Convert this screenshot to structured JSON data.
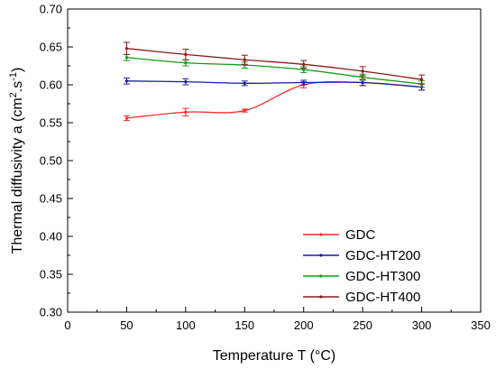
{
  "chart_data": {
    "type": "line",
    "title": "",
    "xlabel": "Temperature T (°C)",
    "ylabel_main": "Thermal diffusivity a (cm",
    "ylabel_sup1": "2",
    "ylabel_mid": ".s",
    "ylabel_sup2": "-1",
    "ylabel_end": ")",
    "xlim": [
      0,
      350
    ],
    "ylim": [
      0.3,
      0.7
    ],
    "xticks": [
      "0",
      "50",
      "100",
      "150",
      "200",
      "250",
      "300",
      "350"
    ],
    "yticks": [
      "0.30",
      "0.35",
      "0.40",
      "0.45",
      "0.50",
      "0.55",
      "0.60",
      "0.65",
      "0.70"
    ],
    "grid": false,
    "legend_position": "bottom-right",
    "x": [
      50,
      100,
      150,
      200,
      250,
      300
    ],
    "series": [
      {
        "name": "GDC",
        "color": "#ff2a2a",
        "values": [
          0.556,
          0.564,
          0.566,
          0.6,
          0.603,
          0.597
        ],
        "errors": [
          0.003,
          0.005,
          0.002,
          0.004,
          0.004,
          0.004
        ]
      },
      {
        "name": "GDC-HT200",
        "color": "#1a1aa6",
        "values": [
          0.605,
          0.604,
          0.602,
          0.603,
          0.603,
          0.597
        ],
        "errors": [
          0.004,
          0.004,
          0.003,
          0.003,
          0.004,
          0.004
        ]
      },
      {
        "name": "GDC-HT300",
        "color": "#139c13",
        "values": [
          0.636,
          0.629,
          0.626,
          0.62,
          0.61,
          0.601
        ],
        "errors": [
          0.004,
          0.004,
          0.004,
          0.004,
          0.004,
          0.004
        ]
      },
      {
        "name": "GDC-HT400",
        "color": "#8b1a1a",
        "values": [
          0.648,
          0.64,
          0.633,
          0.627,
          0.618,
          0.607
        ],
        "errors": [
          0.008,
          0.007,
          0.006,
          0.005,
          0.006,
          0.006
        ]
      }
    ]
  }
}
